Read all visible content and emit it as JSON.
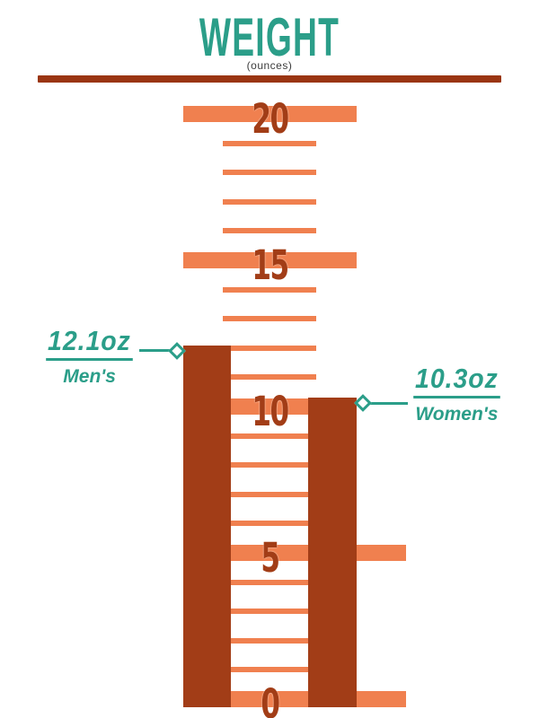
{
  "header": {
    "title": "WEIGHT",
    "subtitle": "(ounces)"
  },
  "colors": {
    "teal": "#2B9E89",
    "rust": "#A23D17",
    "rustDark": "#9A3512",
    "band": "#F0804F",
    "ink": "#3C3C3C",
    "background": "#FFFFFF"
  },
  "chart_data": {
    "type": "bar",
    "title": "WEIGHT",
    "ylabel": "ounces",
    "ylim": [
      0,
      20
    ],
    "y_major_ticks": [
      20,
      15,
      10,
      5,
      0
    ],
    "y_minor_step": 1,
    "grid": true,
    "categories": [
      "Men's",
      "Women's"
    ],
    "values": [
      12.1,
      10.3
    ],
    "points": [
      {
        "category": "Men's",
        "value": 12.1,
        "value_label": "12.1oz",
        "side": "left"
      },
      {
        "category": "Women's",
        "value": 10.3,
        "value_label": "10.3oz",
        "side": "right"
      }
    ]
  }
}
